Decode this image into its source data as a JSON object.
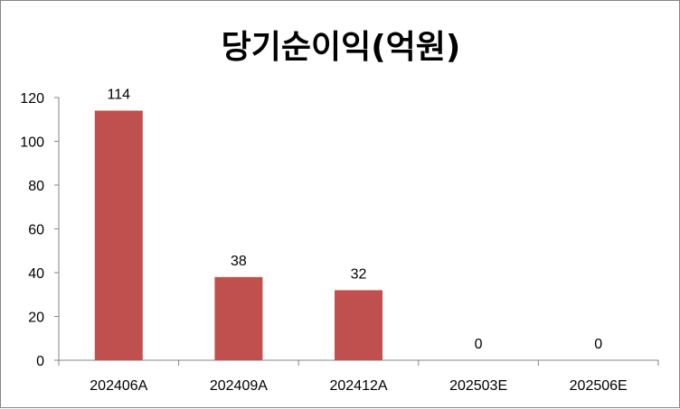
{
  "chart_data": {
    "type": "bar",
    "title": "당기순이익(억원)",
    "categories": [
      "202406A",
      "202409A",
      "202412A",
      "202503E",
      "202506E"
    ],
    "values": [
      114,
      38,
      32,
      0,
      0
    ],
    "ylim": [
      0,
      120
    ],
    "yticks": [
      0,
      20,
      40,
      60,
      80,
      100,
      120
    ],
    "bar_color": "#C0504D",
    "grid": false,
    "legend": "none"
  }
}
